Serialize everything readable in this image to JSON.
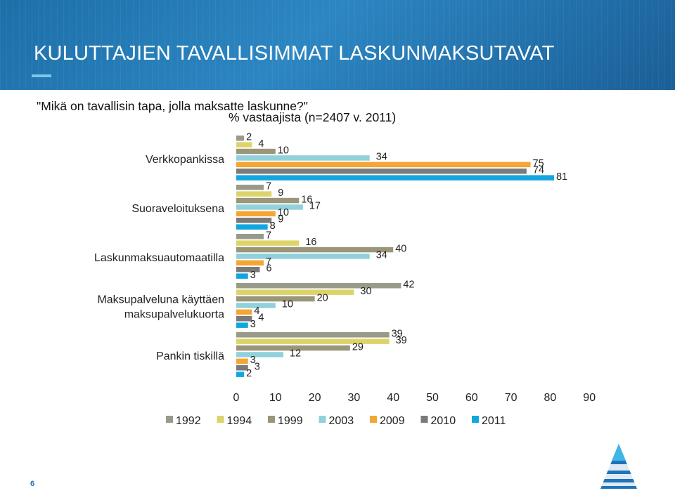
{
  "slide": {
    "title": "KULUTTAJIEN TAVALLISIMMAT LASKUNMAKSUTAVAT",
    "question": "\"Mikä on tavallisin tapa, jolla maksatte laskunne?\"",
    "subtitle": "% vastaajista (n=2407 v. 2011)",
    "page_number": "6"
  },
  "colors": {
    "header_blue": "#2379b5",
    "page_number": "#1f74b8"
  },
  "chart_data": {
    "type": "bar",
    "orientation": "horizontal",
    "categories": [
      "Verkkopankissa",
      "Suoraveloituksena",
      "Laskunmaksuautomaatilla",
      "Maksupalveluna käyttäen maksupalvelukuorta",
      "Pankin tiskillä"
    ],
    "series": [
      {
        "name": "1992",
        "color": "#9a9a8a",
        "values": [
          2,
          7,
          7,
          42,
          39
        ]
      },
      {
        "name": "1994",
        "color": "#dcd46a",
        "values": [
          4,
          9,
          16,
          30,
          39
        ]
      },
      {
        "name": "1999",
        "color": "#9b9679",
        "values": [
          10,
          16,
          40,
          20,
          29
        ]
      },
      {
        "name": "2003",
        "color": "#91d1db",
        "values": [
          34,
          17,
          34,
          10,
          12
        ]
      },
      {
        "name": "2009",
        "color": "#f4a533",
        "values": [
          75,
          10,
          7,
          4,
          3
        ]
      },
      {
        "name": "2010",
        "color": "#7a7a7a",
        "values": [
          74,
          9,
          6,
          4,
          3
        ]
      },
      {
        "name": "2011",
        "color": "#12a6e0",
        "values": [
          81,
          8,
          3,
          3,
          2
        ]
      }
    ],
    "xlim": [
      0,
      90
    ],
    "xticks": [
      "0",
      "10",
      "20",
      "30",
      "40",
      "50",
      "60",
      "70",
      "80",
      "90"
    ],
    "grid": false,
    "legend": "bottom"
  }
}
